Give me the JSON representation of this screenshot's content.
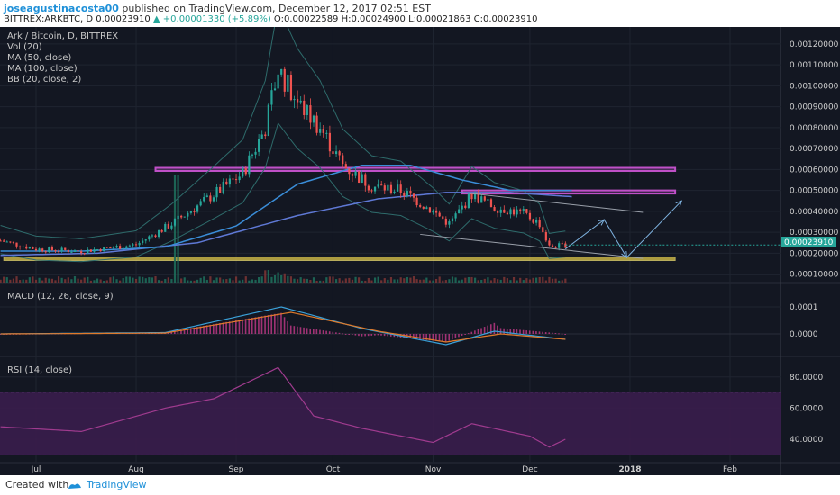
{
  "header": {
    "author": "joseagustinacosta00",
    "published": " published on TradingView.com, December 12, 2017 02:51 EST",
    "symbol_line_a": "BITTREX:ARKBTC, D 0.00023910 ",
    "symbol_line_up": "▲ +0.00001330 (+5.89%)",
    "symbol_line_b": " O:0.00022589 H:0.00024900 L:0.00021863 C:0.00023910"
  },
  "legend": {
    "title": "Ark / Bitcoin, D, BITTREX",
    "vol": "Vol (20)",
    "ma50": "MA (50, close)",
    "ma100": "MA (100, close)",
    "bb": "BB (20, close, 2)",
    "macd": "MACD (12, 26, close, 9)",
    "rsi": "RSI (14, close)"
  },
  "colors": {
    "background": "#131722",
    "up": "#26a69a",
    "down": "#ef5350",
    "ma50": "#3a8dd8",
    "ma100": "#5f79d6",
    "bb": "#2e6b6b",
    "macd": "#3aa0d8",
    "signal": "#e07a2a",
    "rsi_band": "#3a1d4d",
    "rsi_line": "#a03b8f",
    "zone": "#e0c84a",
    "resistance": "#c050c8"
  },
  "footer": {
    "created": "Created with",
    "brand": "TradingView"
  },
  "chart_data": {
    "type": "line",
    "title": "Ark / Bitcoin, D, BITTREX",
    "current_price": "0.00023910",
    "x_ticks": [
      "Jul",
      "Aug",
      "Sep",
      "Oct",
      "Nov",
      "Dec",
      "2018",
      "Feb"
    ],
    "price_axis": {
      "ylim": [
        6e-05,
        0.00128
      ],
      "ticks": [
        "0.00120000",
        "0.00110000",
        "0.00100000",
        "0.00090000",
        "0.00080000",
        "0.00070000",
        "0.00060000",
        "0.00050000",
        "0.00040000",
        "0.00030000",
        "0.00020000",
        "0.00010000"
      ]
    },
    "macd_axis": {
      "ticks": [
        "0.0001",
        "0.0000"
      ]
    },
    "rsi_axis": {
      "ticks": [
        "80.0000",
        "60.0000",
        "40.0000"
      ],
      "ylim": [
        25,
        92
      ]
    },
    "close_path": [
      [
        "2017-06-20",
        0.00026
      ],
      [
        "2017-07-01",
        0.00022
      ],
      [
        "2017-07-15",
        0.00021
      ],
      [
        "2017-08-01",
        0.00024
      ],
      [
        "2017-08-12",
        0.00034
      ],
      [
        "2017-08-25",
        0.00048
      ],
      [
        "2017-09-03",
        0.00058
      ],
      [
        "2017-09-10",
        0.0008
      ],
      [
        "2017-09-14",
        0.00108
      ],
      [
        "2017-09-20",
        0.00092
      ],
      [
        "2017-09-27",
        0.0008
      ],
      [
        "2017-10-04",
        0.00062
      ],
      [
        "2017-10-13",
        0.00052
      ],
      [
        "2017-10-22",
        0.0005
      ],
      [
        "2017-11-01",
        0.0004
      ],
      [
        "2017-11-06",
        0.00034
      ],
      [
        "2017-11-13",
        0.00048
      ],
      [
        "2017-11-20",
        0.00042
      ],
      [
        "2017-11-29",
        0.00039
      ],
      [
        "2017-12-04",
        0.00034
      ],
      [
        "2017-12-07",
        0.00023
      ],
      [
        "2017-12-12",
        0.000239
      ]
    ],
    "ma50_path": [
      [
        "2017-06-20",
        0.00021
      ],
      [
        "2017-07-15",
        0.00021
      ],
      [
        "2017-08-10",
        0.00023
      ],
      [
        "2017-09-01",
        0.00033
      ],
      [
        "2017-09-20",
        0.00053
      ],
      [
        "2017-10-10",
        0.00062
      ],
      [
        "2017-10-25",
        0.00062
      ],
      [
        "2017-11-10",
        0.00055
      ],
      [
        "2017-11-25",
        0.0005
      ],
      [
        "2017-12-14",
        0.0005
      ]
    ],
    "ma100_path": [
      [
        "2017-06-20",
        0.00019
      ],
      [
        "2017-07-20",
        0.0002
      ],
      [
        "2017-08-20",
        0.00025
      ],
      [
        "2017-09-20",
        0.00038
      ],
      [
        "2017-10-15",
        0.00046
      ],
      [
        "2017-11-05",
        0.00049
      ],
      [
        "2017-11-25",
        0.00049
      ],
      [
        "2017-12-14",
        0.00047
      ]
    ],
    "support_zone": {
      "from": "2017-06-21",
      "to": "2018-01-15",
      "low": 0.000165,
      "high": 0.000182
    },
    "resistance_zones": [
      {
        "from": "2017-08-07",
        "to": "2018-01-15",
        "low": 0.000593,
        "high": 0.000608
      },
      {
        "from": "2017-11-10",
        "to": "2018-01-15",
        "low": 0.000485,
        "high": 0.0005
      }
    ],
    "macd_path": [
      [
        "2017-06-20",
        0
      ],
      [
        "2017-08-10",
        5e-06
      ],
      [
        "2017-09-15",
        0.0001
      ],
      [
        "2017-10-10",
        2e-05
      ],
      [
        "2017-11-05",
        -4e-05
      ],
      [
        "2017-11-20",
        1e-05
      ],
      [
        "2017-12-12",
        -2e-05
      ]
    ],
    "signal_path": [
      [
        "2017-06-20",
        0
      ],
      [
        "2017-08-10",
        3e-06
      ],
      [
        "2017-09-18",
        8e-05
      ],
      [
        "2017-10-15",
        1e-05
      ],
      [
        "2017-11-05",
        -3e-05
      ],
      [
        "2017-11-22",
        0.0
      ],
      [
        "2017-12-12",
        -2e-05
      ]
    ],
    "rsi_path": [
      [
        "2017-06-20",
        48
      ],
      [
        "2017-07-15",
        45
      ],
      [
        "2017-08-10",
        60
      ],
      [
        "2017-08-25",
        66
      ],
      [
        "2017-09-14",
        86
      ],
      [
        "2017-09-25",
        55
      ],
      [
        "2017-10-10",
        47
      ],
      [
        "2017-11-01",
        38
      ],
      [
        "2017-11-13",
        50
      ],
      [
        "2017-12-01",
        42
      ],
      [
        "2017-12-07",
        35
      ],
      [
        "2017-12-12",
        40
      ]
    ]
  }
}
